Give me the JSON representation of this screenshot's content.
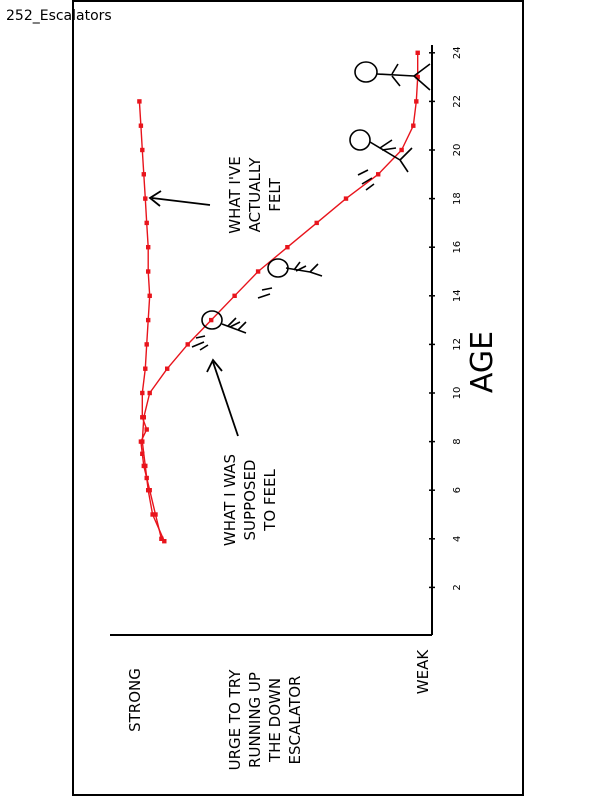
{
  "page_label": "252_Escalators",
  "colors": {
    "line": "#e8141c",
    "ink": "#000000",
    "paper": "#ffffff"
  },
  "chart_data": {
    "type": "line",
    "title": "",
    "xlabel": "AGE",
    "ylabel": [
      "URGE TO TRY",
      "RUNNING UP",
      "THE DOWN",
      "ESCALATOR"
    ],
    "y_top_label": "STRONG",
    "y_bottom_label": "WEAK",
    "xlim": [
      0,
      25
    ],
    "ylim": [
      0,
      1
    ],
    "x_ticks": [
      "2",
      "4",
      "6",
      "8",
      "10",
      "12",
      "14",
      "16",
      "18",
      "20",
      "22",
      "24"
    ],
    "grid": false,
    "orientation": "rotated 90° counter-clockwise",
    "series": [
      {
        "name": "WHAT I'VE ACTUALLY FELT",
        "annotation": [
          "WHAT I'VE",
          "ACTUALLY",
          "FELT"
        ],
        "x": [
          4,
          5,
          6,
          6.5,
          7,
          7.5,
          8,
          8.5,
          9,
          10,
          11,
          12,
          13,
          14,
          15,
          16,
          17,
          18,
          19,
          20,
          21,
          22
        ],
        "y": [
          0.91,
          0.93,
          0.95,
          0.96,
          0.97,
          0.975,
          0.98,
          0.96,
          0.975,
          0.975,
          0.965,
          0.96,
          0.955,
          0.95,
          0.955,
          0.955,
          0.96,
          0.965,
          0.97,
          0.975,
          0.98,
          0.985
        ]
      },
      {
        "name": "WHAT I WAS SUPPOSED TO FEEL",
        "annotation": [
          "WHAT I WAS",
          "SUPPOSED",
          "TO FEEL"
        ],
        "x": [
          3.9,
          5,
          6,
          7,
          8,
          9,
          10,
          11,
          12,
          13,
          14,
          15,
          16,
          17,
          18,
          19,
          20,
          21,
          22,
          23,
          24
        ],
        "y": [
          0.9,
          0.94,
          0.955,
          0.965,
          0.975,
          0.97,
          0.95,
          0.89,
          0.82,
          0.74,
          0.66,
          0.58,
          0.48,
          0.38,
          0.28,
          0.17,
          0.09,
          0.05,
          0.04,
          0.035,
          0.035
        ]
      }
    ]
  }
}
